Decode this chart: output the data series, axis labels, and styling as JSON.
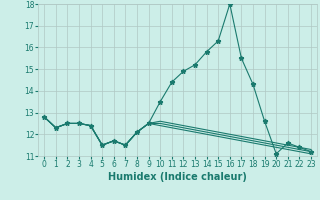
{
  "xlabel": "Humidex (Indice chaleur)",
  "x": [
    0,
    1,
    2,
    3,
    4,
    5,
    6,
    7,
    8,
    9,
    10,
    11,
    12,
    13,
    14,
    15,
    16,
    17,
    18,
    19,
    20,
    21,
    22,
    23
  ],
  "series": [
    [
      12.8,
      12.3,
      12.5,
      12.5,
      12.4,
      11.5,
      11.7,
      11.5,
      12.1,
      12.5,
      13.5,
      14.4,
      14.9,
      15.2,
      15.8,
      16.3,
      18.0,
      15.5,
      14.3,
      12.6,
      11.1,
      11.6,
      11.4,
      11.2
    ],
    [
      12.8,
      12.3,
      12.5,
      12.5,
      12.4,
      11.5,
      11.7,
      11.5,
      12.1,
      12.5,
      12.6,
      12.5,
      12.4,
      12.3,
      12.2,
      12.1,
      12.0,
      11.9,
      11.8,
      11.7,
      11.6,
      11.5,
      11.4,
      11.3
    ],
    [
      12.8,
      12.3,
      12.5,
      12.5,
      12.4,
      11.5,
      11.7,
      11.5,
      12.1,
      12.5,
      12.5,
      12.4,
      12.3,
      12.2,
      12.1,
      12.0,
      11.9,
      11.8,
      11.7,
      11.6,
      11.5,
      11.4,
      11.3,
      11.2
    ],
    [
      12.8,
      12.3,
      12.5,
      12.5,
      12.4,
      11.5,
      11.7,
      11.5,
      12.1,
      12.5,
      12.4,
      12.3,
      12.2,
      12.1,
      12.0,
      11.9,
      11.8,
      11.7,
      11.6,
      11.5,
      11.4,
      11.3,
      11.2,
      11.1
    ]
  ],
  "line_color": "#1a7a6e",
  "bg_color": "#cceee8",
  "grid_color": "#b0c8c4",
  "ylim": [
    11,
    18
  ],
  "yticks": [
    11,
    12,
    13,
    14,
    15,
    16,
    17,
    18
  ],
  "xticks": [
    0,
    1,
    2,
    3,
    4,
    5,
    6,
    7,
    8,
    9,
    10,
    11,
    12,
    13,
    14,
    15,
    16,
    17,
    18,
    19,
    20,
    21,
    22,
    23
  ],
  "marker": "*",
  "markersize": 3.5,
  "linewidth": 0.8,
  "xlabel_fontsize": 7,
  "tick_fontsize": 5.5
}
